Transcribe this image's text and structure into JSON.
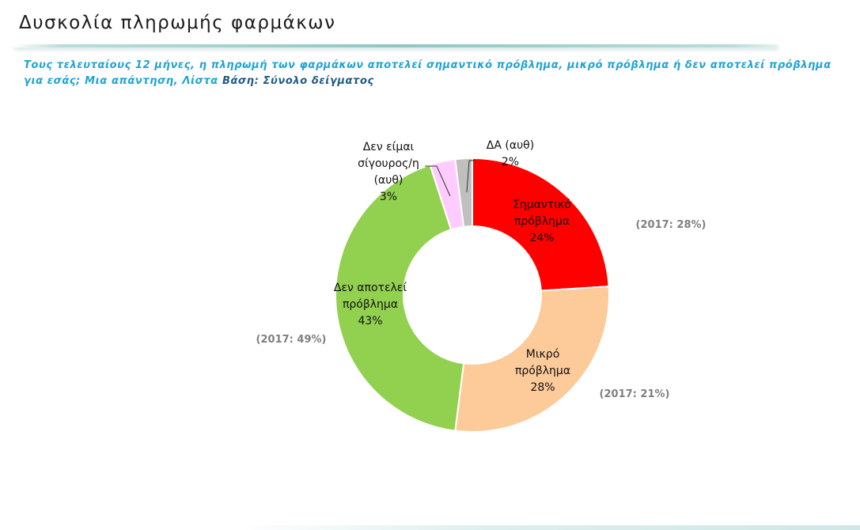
{
  "page": {
    "title": "Δυσκολία πληρωμής φαρμάκων",
    "question": "Τους τελευταίους 12 μήνες, η πληρωμή των φαρμάκων αποτελεί σημαντικό πρόβλημα, μικρό πρόβλημα ή δεν αποτελεί πρόβλημα για εσάς; Μια απάντηση, Λίστα",
    "basis": "Βάση: Σύνολο δείγματος"
  },
  "chart_data": {
    "type": "pie",
    "variant": "donut",
    "title": "",
    "legend": "none",
    "slices": [
      {
        "key": "significant",
        "label_lines": [
          "Σημαντικό",
          "πρόβλημα"
        ],
        "value": 24,
        "value_label": "24%",
        "color": "#ff0000",
        "comparison": "(2017: 28%)"
      },
      {
        "key": "minor",
        "label_lines": [
          "Μικρό",
          "πρόβλημα"
        ],
        "value": 28,
        "value_label": "28%",
        "color": "#fdca99",
        "comparison": "(2017: 21%)"
      },
      {
        "key": "not-problem",
        "label_lines": [
          "Δεν αποτελεί",
          "πρόβλημα"
        ],
        "value": 43,
        "value_label": "43%",
        "color": "#92d050",
        "comparison": "(2017: 49%)"
      },
      {
        "key": "not-sure",
        "label_lines": [
          "Δεν είμαι",
          "σίγουρος/η",
          "(αυθ)"
        ],
        "value": 3,
        "value_label": "3%",
        "color": "#ffccff",
        "comparison": ""
      },
      {
        "key": "dk",
        "label_lines": [
          "ΔΑ (αυθ)"
        ],
        "value": 2,
        "value_label": "2%",
        "color": "#bfbfbf",
        "comparison": ""
      }
    ]
  }
}
